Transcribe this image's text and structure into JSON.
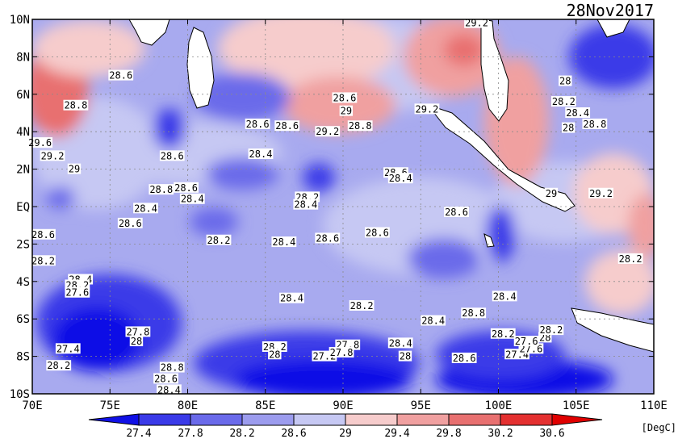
{
  "date": "28Nov2017",
  "unit": "[DegC]",
  "lat_ticks": [
    "10N",
    "8N",
    "6N",
    "4N",
    "2N",
    "EQ",
    "2S",
    "4S",
    "6S",
    "8S",
    "10S"
  ],
  "lon_ticks": [
    "70E",
    "75E",
    "80E",
    "85E",
    "90E",
    "95E",
    "100E",
    "105E",
    "110E"
  ],
  "colorbar": {
    "labels": [
      "27.4",
      "27.8",
      "28.2",
      "28.6",
      "29",
      "29.4",
      "29.8",
      "30.2",
      "30.6"
    ],
    "colors": [
      "#1010e6",
      "#3a3ae8",
      "#6a6aea",
      "#9c9cee",
      "#c6c8f3",
      "#f6cccc",
      "#f0a0a0",
      "#e87070",
      "#e43030",
      "#e00000"
    ]
  },
  "contour_labels": [
    {
      "text": "28.6",
      "lon": 75.7,
      "lat": 7.0
    },
    {
      "text": "28.8",
      "lon": 72.8,
      "lat": 5.4
    },
    {
      "text": "29.6",
      "lon": 70.5,
      "lat": 3.4
    },
    {
      "text": "29.2",
      "lon": 71.3,
      "lat": 2.7
    },
    {
      "text": "29",
      "lon": 72.7,
      "lat": 2.0
    },
    {
      "text": "28.6",
      "lon": 76.3,
      "lat": -0.9
    },
    {
      "text": "28.6",
      "lon": 70.7,
      "lat": -1.5
    },
    {
      "text": "28.4",
      "lon": 77.3,
      "lat": -0.1
    },
    {
      "text": "28.8",
      "lon": 78.3,
      "lat": 0.9
    },
    {
      "text": "28.6",
      "lon": 79.9,
      "lat": 1.0
    },
    {
      "text": "28.4",
      "lon": 80.3,
      "lat": 0.4
    },
    {
      "text": "28.6",
      "lon": 79.0,
      "lat": 2.7
    },
    {
      "text": "28.6",
      "lon": 84.5,
      "lat": 4.4
    },
    {
      "text": "28.6",
      "lon": 86.4,
      "lat": 4.3
    },
    {
      "text": "28.4",
      "lon": 84.7,
      "lat": 2.8
    },
    {
      "text": "28.2",
      "lon": 82.0,
      "lat": -1.8
    },
    {
      "text": "28.4",
      "lon": 86.2,
      "lat": -1.9
    },
    {
      "text": "28.4",
      "lon": 86.7,
      "lat": -4.9
    },
    {
      "text": "28.6",
      "lon": 89.0,
      "lat": -1.7
    },
    {
      "text": "28.2",
      "lon": 87.7,
      "lat": 0.5
    },
    {
      "text": "28.4",
      "lon": 87.6,
      "lat": 0.1
    },
    {
      "text": "28.6",
      "lon": 92.2,
      "lat": -1.4
    },
    {
      "text": "28.2",
      "lon": 91.2,
      "lat": -5.3
    },
    {
      "text": "28.6",
      "lon": 93.4,
      "lat": 1.8
    },
    {
      "text": "28.4",
      "lon": 93.7,
      "lat": 1.5
    },
    {
      "text": "28.6",
      "lon": 97.3,
      "lat": -0.3
    },
    {
      "text": "28.8",
      "lon": 91.1,
      "lat": 4.3
    },
    {
      "text": "29.2",
      "lon": 89.0,
      "lat": 4.0
    },
    {
      "text": "29",
      "lon": 90.2,
      "lat": 5.1
    },
    {
      "text": "28.6",
      "lon": 90.1,
      "lat": 5.8
    },
    {
      "text": "29.2",
      "lon": 95.4,
      "lat": 5.2
    },
    {
      "text": "29.2",
      "lon": 98.6,
      "lat": 9.8
    },
    {
      "text": "28",
      "lon": 104.3,
      "lat": 6.7
    },
    {
      "text": "28.2",
      "lon": 104.2,
      "lat": 5.6
    },
    {
      "text": "28.4",
      "lon": 105.1,
      "lat": 5.0
    },
    {
      "text": "28",
      "lon": 104.5,
      "lat": 4.2
    },
    {
      "text": "28.8",
      "lon": 106.2,
      "lat": 4.4
    },
    {
      "text": "29",
      "lon": 103.4,
      "lat": 0.7
    },
    {
      "text": "29.2",
      "lon": 106.6,
      "lat": 0.7
    },
    {
      "text": "28.2",
      "lon": 108.5,
      "lat": -2.8
    },
    {
      "text": "28.4",
      "lon": 73.1,
      "lat": -3.9
    },
    {
      "text": "28.2",
      "lon": 72.9,
      "lat": -4.2
    },
    {
      "text": "27.6",
      "lon": 72.9,
      "lat": -4.6
    },
    {
      "text": "28.2",
      "lon": 70.7,
      "lat": -2.9
    },
    {
      "text": "27.8",
      "lon": 76.8,
      "lat": -6.7
    },
    {
      "text": "28",
      "lon": 76.7,
      "lat": -7.2
    },
    {
      "text": "27.4",
      "lon": 72.3,
      "lat": -7.6
    },
    {
      "text": "28.2",
      "lon": 71.7,
      "lat": -8.5
    },
    {
      "text": "28.8",
      "lon": 79.0,
      "lat": -8.6
    },
    {
      "text": "28.6",
      "lon": 78.6,
      "lat": -9.2
    },
    {
      "text": "28.4",
      "lon": 78.8,
      "lat": -9.8
    },
    {
      "text": "28.2",
      "lon": 85.6,
      "lat": -7.5
    },
    {
      "text": "28",
      "lon": 85.6,
      "lat": -7.9
    },
    {
      "text": "27.2",
      "lon": 88.8,
      "lat": -8.0
    },
    {
      "text": "27.8",
      "lon": 90.3,
      "lat": -7.4
    },
    {
      "text": "27.8",
      "lon": 89.9,
      "lat": -7.8
    },
    {
      "text": "28.4",
      "lon": 93.7,
      "lat": -7.3
    },
    {
      "text": "28",
      "lon": 94.0,
      "lat": -8.0
    },
    {
      "text": "28.4",
      "lon": 95.8,
      "lat": -6.1
    },
    {
      "text": "28.6",
      "lon": 97.8,
      "lat": -8.1
    },
    {
      "text": "28.8",
      "lon": 98.4,
      "lat": -5.7
    },
    {
      "text": "28.4",
      "lon": 100.4,
      "lat": -4.8
    },
    {
      "text": "28.2",
      "lon": 100.3,
      "lat": -6.8
    },
    {
      "text": "27.4",
      "lon": 101.2,
      "lat": -7.9
    },
    {
      "text": "27.6",
      "lon": 102.1,
      "lat": -7.6
    },
    {
      "text": "27.6",
      "lon": 101.8,
      "lat": -7.2
    },
    {
      "text": "28",
      "lon": 103.0,
      "lat": -7.0
    },
    {
      "text": "28.2",
      "lon": 103.4,
      "lat": -6.6
    }
  ]
}
